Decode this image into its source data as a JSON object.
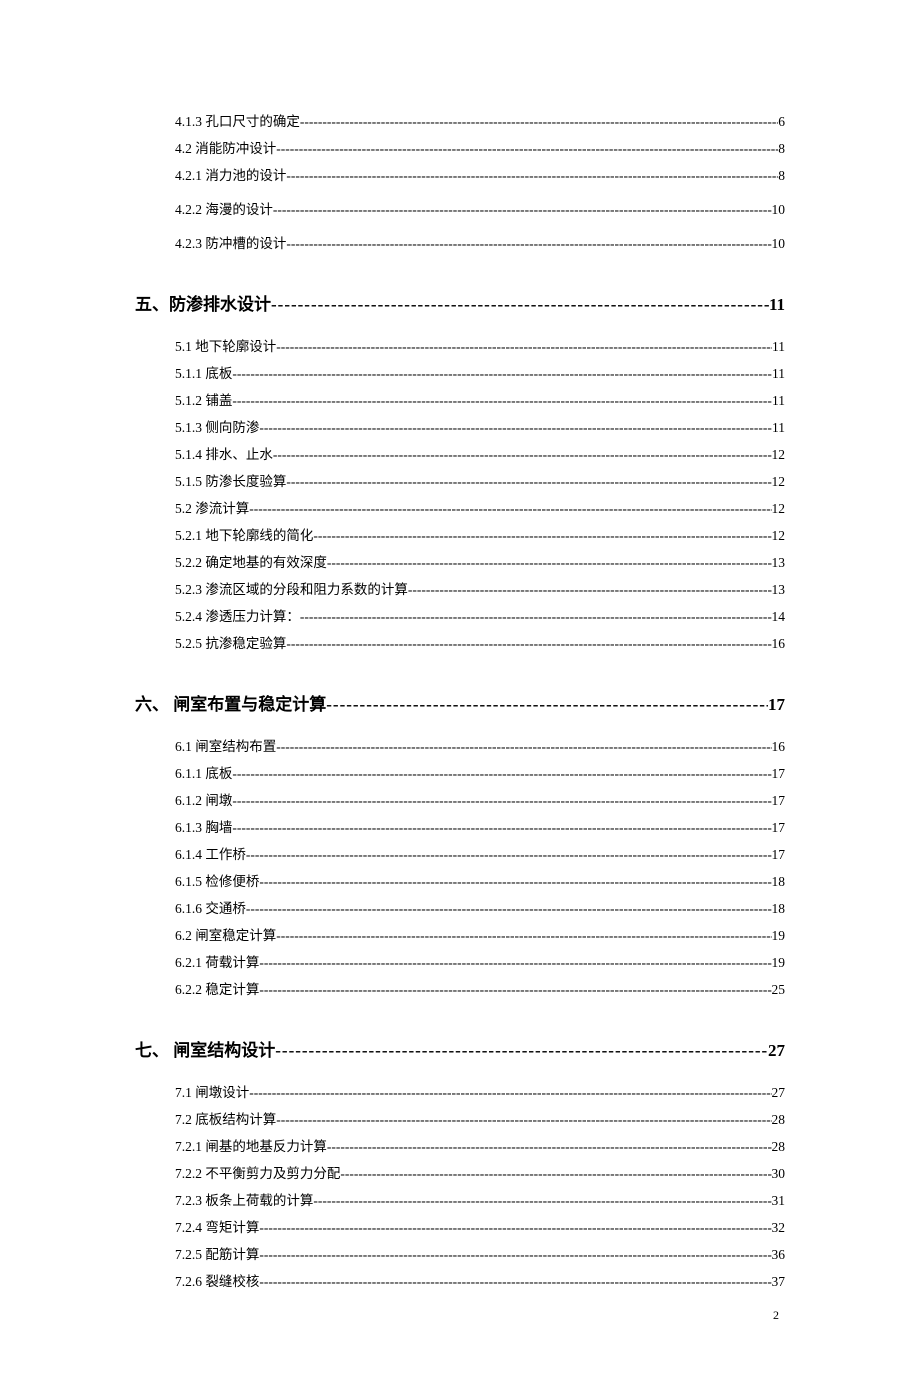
{
  "leader_heading": "----------------------------------------------------------------------------------------",
  "leader_item": "------------------------------------------------------------------------------------------------------------------------",
  "page_number": "2",
  "groups": [
    {
      "heading": null,
      "items": [
        {
          "label": "4.1.3  孔口尺寸的确定 ",
          "page": "6",
          "spaced": false
        },
        {
          "label": "4.2  消能防冲设计 ",
          "page": "8",
          "spaced": false
        },
        {
          "label": "4.2.1  消力池的设计",
          "page": "8",
          "spaced": false
        },
        {
          "label": "4.2.2  海漫的设计   ",
          "page": "10",
          "spaced": true
        },
        {
          "label": "4.2.3  防冲槽的设计 ",
          "page": "10",
          "spaced": false
        }
      ]
    },
    {
      "heading": {
        "label": "五、防渗排水设计",
        "page": "11"
      },
      "items": [
        {
          "label": "5.1  地下轮廓设计",
          "page": "11",
          "spaced": false
        },
        {
          "label": "5.1.1  底板 ",
          "page": "11",
          "spaced": false
        },
        {
          "label": "5.1.2  铺盖 ",
          "page": "11",
          "spaced": false
        },
        {
          "label": "5.1.3 侧向防渗  ",
          "page": "11",
          "spaced": false
        },
        {
          "label": "5.1.4  排水、止水  ",
          "page": "12",
          "spaced": false
        },
        {
          "label": "5.1.5  防渗长度验算 ",
          "page": "12",
          "spaced": false
        },
        {
          "label": "5.2  渗流计算 ",
          "page": "12",
          "spaced": false
        },
        {
          "label": "5.2.1  地下轮廓线的简化  ",
          "page": "12",
          "spaced": false
        },
        {
          "label": "5.2.2  确定地基的有效深度  ",
          "page": "13",
          "spaced": false
        },
        {
          "label": "5.2.3  渗流区域的分段和阻力系数的计算",
          "page": "13",
          "spaced": false
        },
        {
          "label": "5.2.4  渗透压力计算： ",
          "page": "14",
          "spaced": false
        },
        {
          "label": "5.2.5  抗渗稳定验算 ",
          "page": "16",
          "spaced": false
        }
      ]
    },
    {
      "heading": {
        "label": "六、  闸室布置与稳定计算 ",
        "page": "17"
      },
      "items": [
        {
          "label": "6.1  闸室结构布置",
          "page": "16",
          "spaced": false
        },
        {
          "label": "6.1.1  底板 ",
          "page": "17",
          "spaced": false
        },
        {
          "label": "6.1.2  闸墩 ",
          "page": "17",
          "spaced": false
        },
        {
          "label": "6.1.3  胸墙 ",
          "page": "17",
          "spaced": false
        },
        {
          "label": "6.1.4    工作桥 ",
          "page": "17",
          "spaced": false
        },
        {
          "label": "6.1.5  检修便桥",
          "page": "18",
          "spaced": false
        },
        {
          "label": "6.1.6  交通桥",
          "page": "18",
          "spaced": false
        },
        {
          "label": "6.2  闸室稳定计算",
          "page": "19",
          "spaced": false
        },
        {
          "label": "6.2.1  荷载计算",
          "page": "19",
          "spaced": false
        },
        {
          "label": "6.2.2  稳定计算",
          "page": "25",
          "spaced": false
        }
      ]
    },
    {
      "heading": {
        "label": "七、  闸室结构设计 ",
        "page": "27"
      },
      "items": [
        {
          "label": "7.1  闸墩设计 ",
          "page": "27",
          "spaced": false
        },
        {
          "label": "7.2  底板结构计算  ",
          "page": "28",
          "spaced": false
        },
        {
          "label": "7.2.1  闸基的地基反力计算  ",
          "page": "28",
          "spaced": false
        },
        {
          "label": "7.2.2  不平衡剪力及剪力分配",
          "page": "30",
          "spaced": false
        },
        {
          "label": "7.2.3 板条上荷载的计算  ",
          "page": "31",
          "spaced": false
        },
        {
          "label": "7.2.4  弯矩计算",
          "page": "32",
          "spaced": false
        },
        {
          "label": "7.2.5  配筋计算  ",
          "page": "36",
          "spaced": false
        },
        {
          "label": "7.2.6 裂缝校核  ",
          "page": "37",
          "spaced": false
        }
      ]
    }
  ]
}
